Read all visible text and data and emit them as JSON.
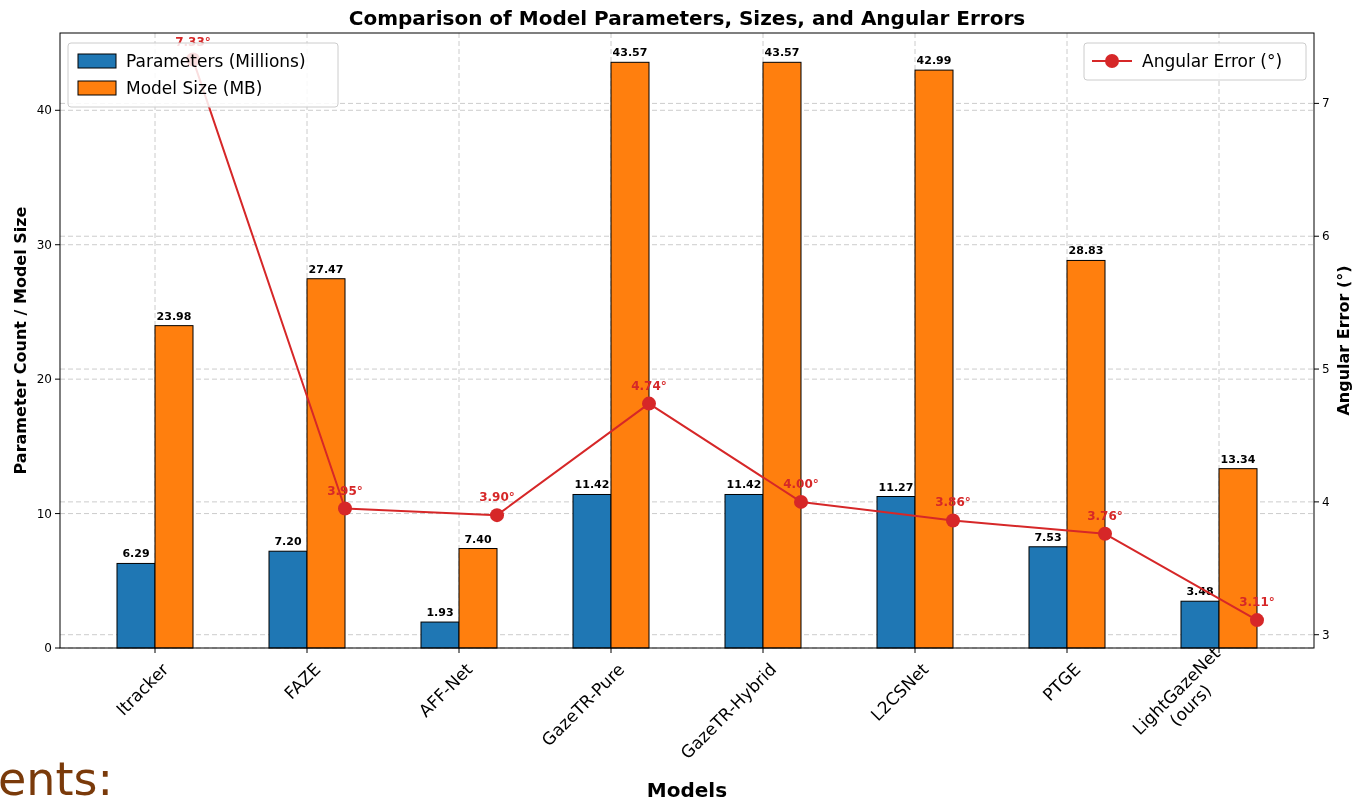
{
  "chart_data": {
    "type": "bar",
    "title": "Comparison of Model Parameters, Sizes, and Angular Errors",
    "xlabel": "Models",
    "ylabel": "Parameter Count / Model Size",
    "y2label": "Angular Error (°)",
    "categories": [
      "Itracker",
      "FAZE",
      "AFF-Net",
      "GazeTR-Pure",
      "GazeTR-Hybrid",
      "L2CSNet",
      "PTGE",
      "LightGazeNet\n(ours)"
    ],
    "series": [
      {
        "name": "Parameters (Millions)",
        "color": "#1f77b4",
        "values": [
          6.29,
          7.2,
          1.93,
          11.42,
          11.42,
          11.27,
          7.53,
          3.48
        ],
        "value_labels": [
          "6.29",
          "7.20",
          "1.93",
          "11.42",
          "11.42",
          "11.27",
          "7.53",
          "3.48"
        ]
      },
      {
        "name": "Model Size (MB)",
        "color": "#ff7f0e",
        "values": [
          23.98,
          27.47,
          7.4,
          43.57,
          43.57,
          42.99,
          28.83,
          13.34
        ],
        "value_labels": [
          "23.98",
          "27.47",
          "7.40",
          "43.57",
          "43.57",
          "42.99",
          "28.83",
          "13.34"
        ]
      },
      {
        "name": "Angular Error (°)",
        "type": "line",
        "axis": "y2",
        "color": "#d62728",
        "values": [
          7.33,
          3.95,
          3.9,
          4.74,
          4.0,
          3.86,
          3.76,
          3.11
        ],
        "value_labels": [
          "7.33°",
          "3.95°",
          "3.90°",
          "4.74°",
          "4.00°",
          "3.86°",
          "3.76°",
          "3.11°"
        ]
      }
    ],
    "ylim": [
      0,
      45.75
    ],
    "yticks": [
      0,
      10,
      20,
      30,
      40
    ],
    "y2lim": [
      2.9,
      7.53
    ],
    "y2ticks": [
      3,
      4,
      5,
      6,
      7
    ],
    "grid": true,
    "legend": "top left",
    "marker": "circle",
    "line_style": "solid",
    "annotations": [
      "ents:"
    ]
  }
}
